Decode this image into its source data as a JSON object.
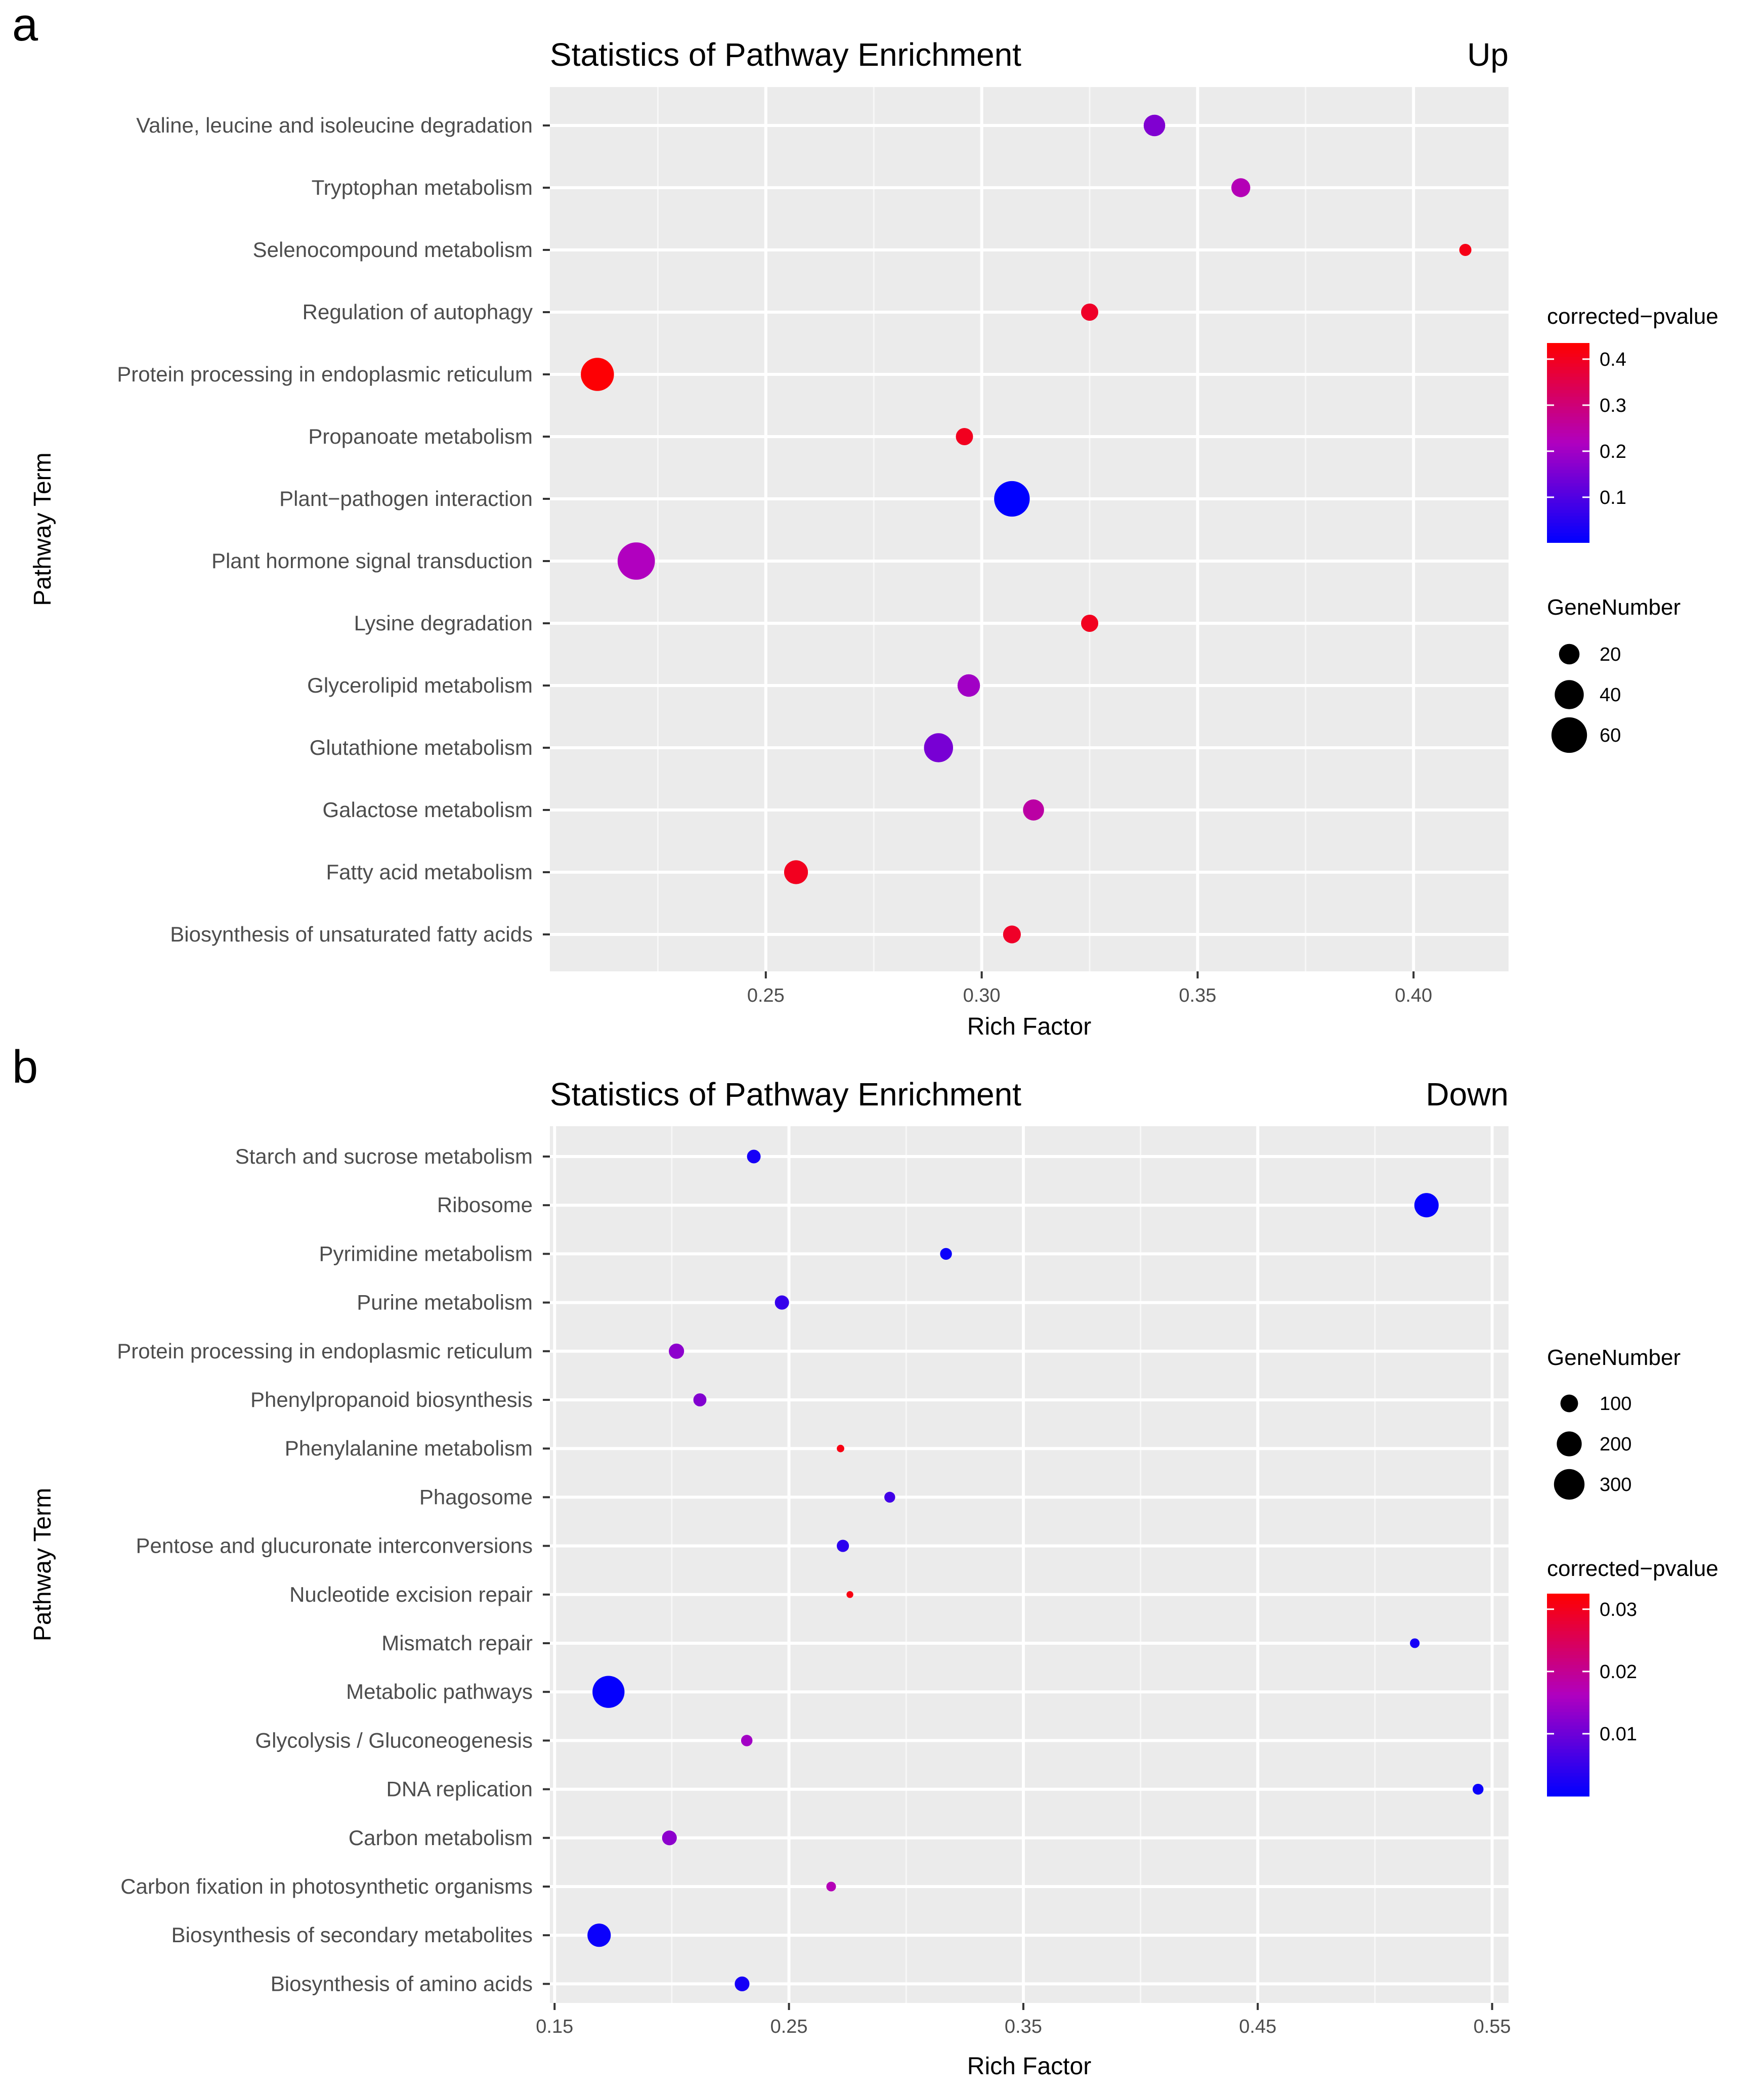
{
  "panel_letters": [
    "a",
    "b"
  ],
  "chart_data": [
    {
      "type": "scatter",
      "panel": "a",
      "title": "Statistics of Pathway Enrichment",
      "subtitle": "Up",
      "xlabel": "Rich Factor",
      "ylabel": "Pathway Term",
      "xlim": [
        0.2,
        0.422
      ],
      "xticks": [
        0.25,
        0.3,
        0.35,
        0.4
      ],
      "xtick_labels": [
        "0.25",
        "0.30",
        "0.35",
        "0.40"
      ],
      "grid": true,
      "color_legend": {
        "title": "corrected−pvalue",
        "min": 0.002,
        "max": 0.435,
        "ticks": [
          0.1,
          0.2,
          0.3,
          0.4
        ],
        "tick_labels": [
          "0.1",
          "0.2",
          "0.3",
          "0.4"
        ],
        "low_color": "#0000ff",
        "mid_color": "#b000c0",
        "high_color": "#ff0000"
      },
      "size_legend": {
        "title": "GeneNumber",
        "values": [
          20,
          40,
          60
        ],
        "labels": [
          "20",
          "40",
          "60"
        ],
        "scale_max": 70
      },
      "legend_order": [
        "color",
        "size"
      ],
      "points": [
        {
          "term": "Valine, leucine and isoleucine degradation",
          "rich_factor": 0.34,
          "gene_number": 22,
          "pvalue": 0.16
        },
        {
          "term": "Tryptophan metabolism",
          "rich_factor": 0.36,
          "gene_number": 17,
          "pvalue": 0.23
        },
        {
          "term": "Selenocompound metabolism",
          "rich_factor": 0.412,
          "gene_number": 7,
          "pvalue": 0.41
        },
        {
          "term": "Regulation of autophagy",
          "rich_factor": 0.325,
          "gene_number": 14,
          "pvalue": 0.39
        },
        {
          "term": "Protein processing in endoplasmic reticulum",
          "rich_factor": 0.211,
          "gene_number": 52,
          "pvalue": 0.43
        },
        {
          "term": "Propanoate metabolism",
          "rich_factor": 0.296,
          "gene_number": 14,
          "pvalue": 0.4
        },
        {
          "term": "Plant−pathogen interaction",
          "rich_factor": 0.307,
          "gene_number": 60,
          "pvalue": 0.002
        },
        {
          "term": "Plant hormone signal transduction",
          "rich_factor": 0.22,
          "gene_number": 66,
          "pvalue": 0.22
        },
        {
          "term": "Lysine degradation",
          "rich_factor": 0.325,
          "gene_number": 14,
          "pvalue": 0.4
        },
        {
          "term": "Glycerolipid metabolism",
          "rich_factor": 0.297,
          "gene_number": 24,
          "pvalue": 0.2
        },
        {
          "term": "Glutathione metabolism",
          "rich_factor": 0.29,
          "gene_number": 40,
          "pvalue": 0.15
        },
        {
          "term": "Galactose metabolism",
          "rich_factor": 0.312,
          "gene_number": 21,
          "pvalue": 0.25
        },
        {
          "term": "Fatty acid metabolism",
          "rich_factor": 0.257,
          "gene_number": 27,
          "pvalue": 0.4
        },
        {
          "term": "Biosynthesis of unsaturated fatty acids",
          "rich_factor": 0.307,
          "gene_number": 15,
          "pvalue": 0.39
        }
      ]
    },
    {
      "type": "scatter",
      "panel": "b",
      "title": "Statistics of Pathway Enrichment",
      "subtitle": "Down",
      "xlabel": "Rich Factor",
      "ylabel": "Pathway Term",
      "xlim": [
        0.148,
        0.557
      ],
      "xticks": [
        0.15,
        0.25,
        0.35,
        0.45,
        0.55
      ],
      "xtick_labels": [
        "0.15",
        "0.25",
        "0.35",
        "0.45",
        "0.55"
      ],
      "grid": true,
      "color_legend": {
        "title": "corrected−pvalue",
        "min": 0.0,
        "max": 0.0325,
        "ticks": [
          0.01,
          0.02,
          0.03
        ],
        "tick_labels": [
          "0.01",
          "0.02",
          "0.03"
        ],
        "low_color": "#0000ff",
        "mid_color": "#b000c0",
        "high_color": "#ff0000"
      },
      "size_legend": {
        "title": "GeneNumber",
        "values": [
          100,
          200,
          300
        ],
        "labels": [
          "100",
          "200",
          "300"
        ],
        "scale_max": 380
      },
      "legend_order": [
        "size",
        "color"
      ],
      "points": [
        {
          "term": "Starch and sucrose metabolism",
          "rich_factor": 0.235,
          "gene_number": 60,
          "pvalue": 0.002
        },
        {
          "term": "Ribosome",
          "rich_factor": 0.522,
          "gene_number": 190,
          "pvalue": 0.0005
        },
        {
          "term": "Pyrimidine metabolism",
          "rich_factor": 0.317,
          "gene_number": 45,
          "pvalue": 0.001
        },
        {
          "term": "Purine metabolism",
          "rich_factor": 0.247,
          "gene_number": 65,
          "pvalue": 0.005
        },
        {
          "term": "Protein processing in endoplasmic reticulum",
          "rich_factor": 0.202,
          "gene_number": 75,
          "pvalue": 0.013
        },
        {
          "term": "Phenylpropanoid biosynthesis",
          "rich_factor": 0.212,
          "gene_number": 55,
          "pvalue": 0.012
        },
        {
          "term": "Phenylalanine metabolism",
          "rich_factor": 0.272,
          "gene_number": 18,
          "pvalue": 0.031
        },
        {
          "term": "Phagosome",
          "rich_factor": 0.293,
          "gene_number": 38,
          "pvalue": 0.006
        },
        {
          "term": "Pentose and glucuronate interconversions",
          "rich_factor": 0.273,
          "gene_number": 48,
          "pvalue": 0.004
        },
        {
          "term": "Nucleotide excision repair",
          "rich_factor": 0.276,
          "gene_number": 15,
          "pvalue": 0.031
        },
        {
          "term": "Mismatch repair",
          "rich_factor": 0.517,
          "gene_number": 30,
          "pvalue": 0.002
        },
        {
          "term": "Metabolic pathways",
          "rich_factor": 0.173,
          "gene_number": 330,
          "pvalue": 0.0005
        },
        {
          "term": "Glycolysis / Gluconeogenesis",
          "rich_factor": 0.232,
          "gene_number": 42,
          "pvalue": 0.015
        },
        {
          "term": "DNA replication",
          "rich_factor": 0.544,
          "gene_number": 38,
          "pvalue": 0.001
        },
        {
          "term": "Carbon metabolism",
          "rich_factor": 0.199,
          "gene_number": 70,
          "pvalue": 0.013
        },
        {
          "term": "Carbon fixation in photosynthetic organisms",
          "rich_factor": 0.268,
          "gene_number": 30,
          "pvalue": 0.017
        },
        {
          "term": "Biosynthesis of secondary metabolites",
          "rich_factor": 0.169,
          "gene_number": 175,
          "pvalue": 0.001
        },
        {
          "term": "Biosynthesis of amino acids",
          "rich_factor": 0.23,
          "gene_number": 70,
          "pvalue": 0.002
        }
      ]
    }
  ]
}
